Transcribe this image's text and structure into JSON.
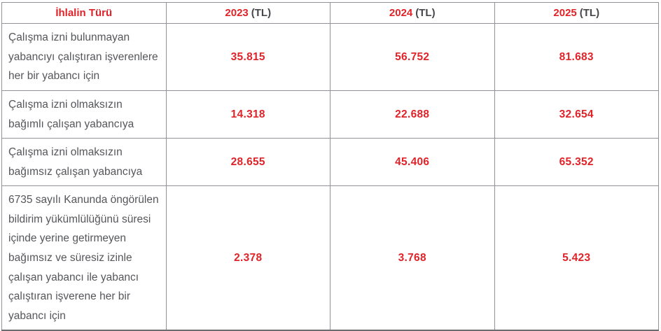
{
  "colors": {
    "accent_red": "#e02328",
    "body_text_grey": "#55565a",
    "header_unit_grey": "#46474b",
    "border_grey": "#8f9296"
  },
  "table": {
    "header": {
      "violation_type": "İhlalin Türü",
      "years": [
        {
          "year": "2023",
          "unit": "(TL)"
        },
        {
          "year": "2024",
          "unit": "(TL)"
        },
        {
          "year": "2025",
          "unit": "(TL)"
        }
      ]
    },
    "rows": [
      {
        "label": "Çalışma izni bulunmayan yabancıyı çalıştıran işverenlere her bir yabancı için",
        "values": [
          "35.815",
          "56.752",
          "81.683"
        ]
      },
      {
        "label": "Çalışma izni olmaksızın bağımlı çalışan yabancıya",
        "values": [
          "14.318",
          "22.688",
          "32.654"
        ]
      },
      {
        "label": "Çalışma izni olmaksızın bağımsız çalışan yabancıya",
        "values": [
          "28.655",
          "45.406",
          "65.352"
        ]
      },
      {
        "label": "6735 sayılı Kanunda öngörülen bildirim yükümlülüğünü süresi içinde yerine getirmeyen bağımsız ve süresiz izinle çalışan yabancı ile yabancı çalıştıran işverene her bir yabancı için",
        "values": [
          "2.378",
          "3.768",
          "5.423"
        ]
      }
    ]
  },
  "chart_data": {
    "type": "table",
    "title": "",
    "columns": [
      "İhlalin Türü",
      "2023 (TL)",
      "2024 (TL)",
      "2025 (TL)"
    ],
    "rows": [
      [
        "Çalışma izni bulunmayan yabancıyı çalıştıran işverenlere her bir yabancı için",
        "35.815",
        "56.752",
        "81.683"
      ],
      [
        "Çalışma izni olmaksızın bağımlı çalışan yabancıya",
        "14.318",
        "22.688",
        "32.654"
      ],
      [
        "Çalışma izni olmaksızın bağımsız çalışan yabancıya",
        "28.655",
        "45.406",
        "65.352"
      ],
      [
        "6735 sayılı Kanunda öngörülen bildirim yükümlülüğünü süresi içinde yerine getirmeyen bağımsız ve süresiz izinle çalışan yabancı ile yabancı çalıştıran işverene her bir yabancı için",
        "2.378",
        "3.768",
        "5.423"
      ]
    ],
    "series": [
      {
        "name": "2023 (TL)",
        "values": [
          35815,
          14318,
          28655,
          2378
        ]
      },
      {
        "name": "2024 (TL)",
        "values": [
          56752,
          22688,
          45406,
          3768
        ]
      },
      {
        "name": "2025 (TL)",
        "values": [
          81683,
          32654,
          65352,
          5423
        ]
      }
    ],
    "categories": [
      "Çalışma izni bulunmayan yabancıyı çalıştıran işverenlere her bir yabancı için",
      "Çalışma izni olmaksızın bağımlı çalışan yabancıya",
      "Çalışma izni olmaksızın bağımsız çalışan yabancıya",
      "6735 sayılı Kanunda öngörülen bildirim yükümlülüğünü süresi içinde yerine getirmeyen bağımsız ve süresiz izinle çalışan yabancı ile yabancı çalıştıran işverene her bir yabancı için"
    ]
  }
}
